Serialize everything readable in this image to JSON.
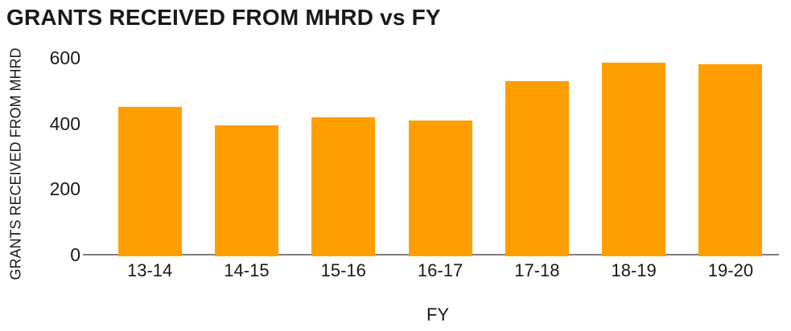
{
  "chart_data": {
    "type": "bar",
    "title": "GRANTS RECEIVED FROM MHRD vs FY",
    "xlabel": "FY",
    "ylabel": "GRANTS RECEIVED FROM MHRD",
    "categories": [
      "13-14",
      "14-15",
      "15-16",
      "16-17",
      "17-18",
      "18-19",
      "19-20"
    ],
    "values": [
      450,
      395,
      420,
      410,
      530,
      585,
      580
    ],
    "yticks": [
      0,
      200,
      400,
      600
    ],
    "ylim": [
      0,
      600
    ],
    "grid": false,
    "legend_position": "none",
    "colors": {
      "bar": "#FF9E01",
      "axis_line": "#7F7F7F",
      "text": "#1A1A1A",
      "background": "#FFFFFF"
    }
  }
}
